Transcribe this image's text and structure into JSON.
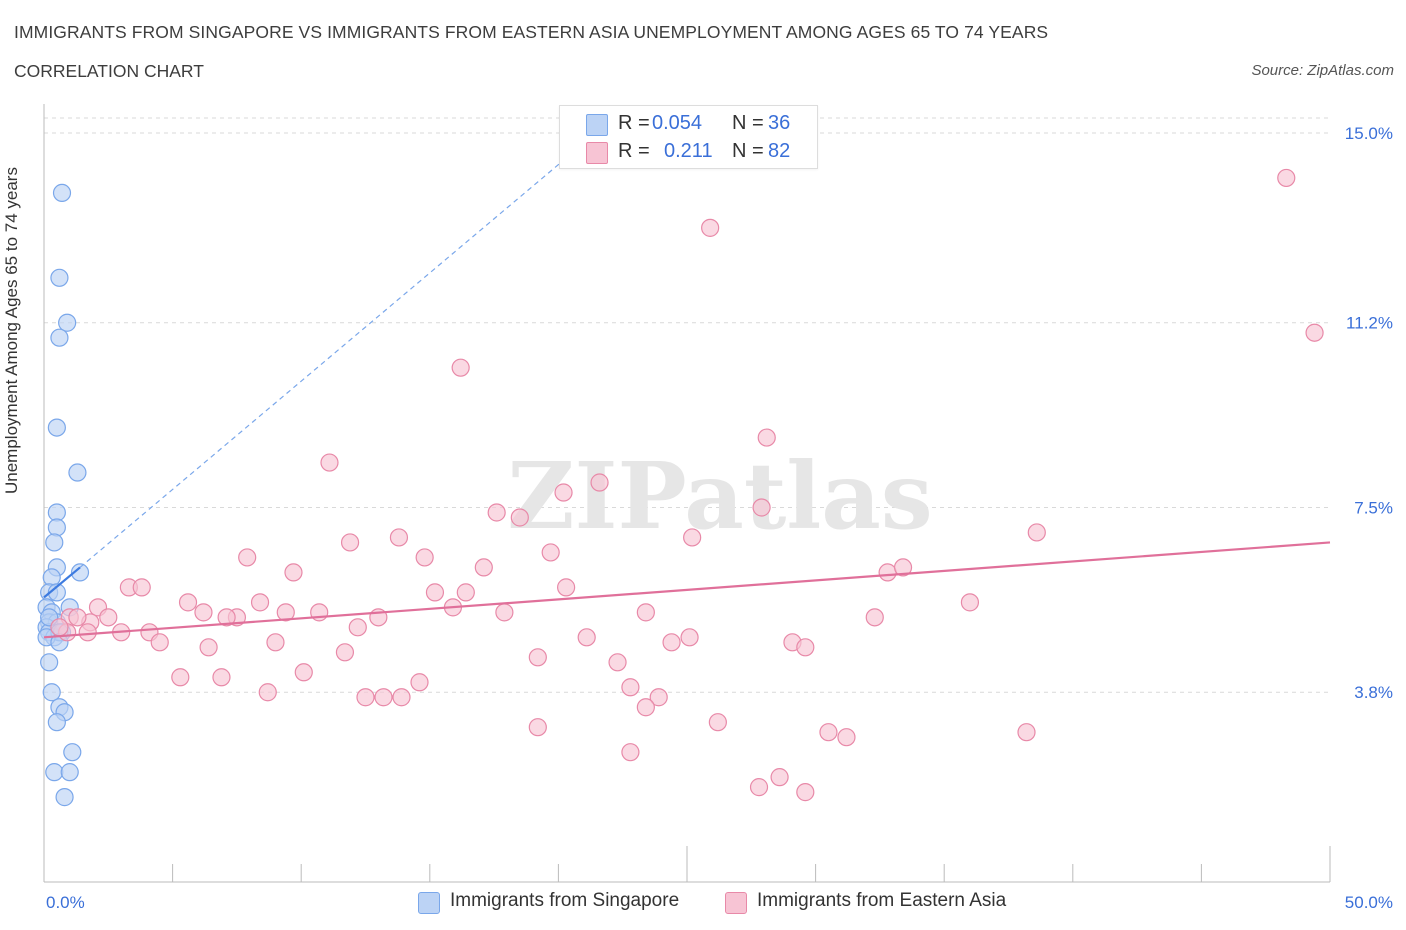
{
  "header": {
    "title": "IMMIGRANTS FROM SINGAPORE VS IMMIGRANTS FROM EASTERN ASIA UNEMPLOYMENT AMONG AGES 65 TO 74 YEARS",
    "subtitle": "CORRELATION CHART",
    "source": "Source: ZipAtlas.com"
  },
  "watermark": "ZIPatlas",
  "legend": {
    "singapore": {
      "r_label": "R =",
      "r_value": "0.054",
      "n_label": "N =",
      "n_value": "36"
    },
    "eastern_asia": {
      "r_label": "R =",
      "r_value": "0.211",
      "n_label": "N =",
      "n_value": "82"
    }
  },
  "chart_data": {
    "type": "scatter",
    "title": "IMMIGRANTS FROM SINGAPORE VS IMMIGRANTS FROM EASTERN ASIA UNEMPLOYMENT AMONG AGES 65 TO 74 YEARS",
    "subtitle": "CORRELATION CHART",
    "xlabel": "",
    "ylabel": "Unemployment Among Ages 65 to 74 years",
    "xlim": [
      0,
      50
    ],
    "ylim": [
      0,
      15.3
    ],
    "x_tick_labels": {
      "min": "0.0%",
      "max": "50.0%"
    },
    "y_ticks": [
      {
        "value": 3.8,
        "label": "3.8%"
      },
      {
        "value": 7.5,
        "label": "7.5%"
      },
      {
        "value": 11.2,
        "label": "11.2%"
      },
      {
        "value": 15.0,
        "label": "15.0%"
      }
    ],
    "grid": true,
    "legend_position": "bottom-center",
    "series": [
      {
        "name": "Immigrants from Singapore",
        "color": "#7aa7ea",
        "fill": "#bcd3f5",
        "R": 0.054,
        "N": 36,
        "trend": {
          "x0": 0,
          "y0": 5.7,
          "x1": 1.4,
          "y1": 6.3
        },
        "trend_extension": {
          "x0": 1.4,
          "y0": 6.3,
          "x1": 21.0,
          "y1": 14.8
        },
        "points": [
          [
            0.7,
            13.8
          ],
          [
            0.6,
            12.1
          ],
          [
            0.9,
            11.2
          ],
          [
            0.6,
            10.9
          ],
          [
            0.5,
            9.1
          ],
          [
            1.3,
            8.2
          ],
          [
            0.5,
            7.4
          ],
          [
            0.5,
            7.1
          ],
          [
            0.4,
            6.8
          ],
          [
            0.5,
            6.3
          ],
          [
            1.4,
            6.2
          ],
          [
            0.3,
            6.1
          ],
          [
            0.2,
            5.8
          ],
          [
            0.5,
            5.8
          ],
          [
            0.1,
            5.5
          ],
          [
            0.3,
            5.4
          ],
          [
            1.0,
            5.5
          ],
          [
            0.2,
            5.2
          ],
          [
            0.5,
            5.2
          ],
          [
            0.1,
            5.1
          ],
          [
            0.2,
            5.0
          ],
          [
            0.4,
            4.9
          ],
          [
            0.7,
            5.0
          ],
          [
            0.2,
            5.3
          ],
          [
            0.6,
            5.0
          ],
          [
            0.1,
            4.9
          ],
          [
            0.6,
            4.8
          ],
          [
            0.2,
            4.4
          ],
          [
            0.3,
            3.8
          ],
          [
            0.6,
            3.5
          ],
          [
            0.8,
            3.4
          ],
          [
            0.5,
            3.2
          ],
          [
            1.1,
            2.6
          ],
          [
            0.4,
            2.2
          ],
          [
            1.0,
            2.2
          ],
          [
            0.8,
            1.7
          ]
        ]
      },
      {
        "name": "Immigrants from Eastern Asia",
        "color": "#e889a8",
        "fill": "#f7c4d4",
        "R": 0.211,
        "N": 82,
        "trend": {
          "x0": 0,
          "y0": 4.9,
          "x1": 50,
          "y1": 6.8
        },
        "points": [
          [
            48.3,
            14.1
          ],
          [
            49.4,
            11.0
          ],
          [
            25.9,
            13.1
          ],
          [
            16.2,
            10.3
          ],
          [
            28.1,
            8.9
          ],
          [
            11.1,
            8.4
          ],
          [
            20.2,
            7.8
          ],
          [
            21.6,
            8.0
          ],
          [
            17.6,
            7.4
          ],
          [
            18.5,
            7.3
          ],
          [
            27.9,
            7.5
          ],
          [
            25.2,
            6.9
          ],
          [
            38.6,
            7.0
          ],
          [
            13.8,
            6.9
          ],
          [
            11.9,
            6.8
          ],
          [
            7.9,
            6.5
          ],
          [
            14.8,
            6.5
          ],
          [
            19.7,
            6.6
          ],
          [
            17.1,
            6.3
          ],
          [
            9.7,
            6.2
          ],
          [
            32.8,
            6.2
          ],
          [
            33.4,
            6.3
          ],
          [
            3.3,
            5.9
          ],
          [
            3.8,
            5.9
          ],
          [
            15.2,
            5.8
          ],
          [
            20.3,
            5.9
          ],
          [
            16.4,
            5.8
          ],
          [
            5.6,
            5.6
          ],
          [
            8.4,
            5.6
          ],
          [
            36.0,
            5.6
          ],
          [
            15.9,
            5.5
          ],
          [
            2.1,
            5.5
          ],
          [
            6.2,
            5.4
          ],
          [
            9.4,
            5.4
          ],
          [
            10.7,
            5.4
          ],
          [
            17.9,
            5.4
          ],
          [
            23.4,
            5.4
          ],
          [
            7.5,
            5.3
          ],
          [
            7.1,
            5.3
          ],
          [
            13.0,
            5.3
          ],
          [
            32.3,
            5.3
          ],
          [
            1.0,
            5.3
          ],
          [
            2.5,
            5.3
          ],
          [
            1.8,
            5.2
          ],
          [
            12.2,
            5.1
          ],
          [
            0.9,
            5.0
          ],
          [
            1.7,
            5.0
          ],
          [
            4.1,
            5.0
          ],
          [
            3.0,
            5.0
          ],
          [
            21.1,
            4.9
          ],
          [
            25.1,
            4.9
          ],
          [
            4.5,
            4.8
          ],
          [
            9.0,
            4.8
          ],
          [
            24.4,
            4.8
          ],
          [
            29.1,
            4.8
          ],
          [
            29.6,
            4.7
          ],
          [
            11.7,
            4.6
          ],
          [
            6.4,
            4.7
          ],
          [
            19.2,
            4.5
          ],
          [
            22.3,
            4.4
          ],
          [
            10.1,
            4.2
          ],
          [
            5.3,
            4.1
          ],
          [
            6.9,
            4.1
          ],
          [
            14.6,
            4.0
          ],
          [
            22.8,
            3.9
          ],
          [
            8.7,
            3.8
          ],
          [
            13.2,
            3.7
          ],
          [
            12.5,
            3.7
          ],
          [
            13.9,
            3.7
          ],
          [
            23.9,
            3.7
          ],
          [
            23.4,
            3.5
          ],
          [
            26.2,
            3.2
          ],
          [
            19.2,
            3.1
          ],
          [
            38.2,
            3.0
          ],
          [
            30.5,
            3.0
          ],
          [
            31.2,
            2.9
          ],
          [
            22.8,
            2.6
          ],
          [
            28.6,
            2.1
          ],
          [
            27.8,
            1.9
          ],
          [
            29.6,
            1.8
          ],
          [
            1.3,
            5.3
          ],
          [
            0.6,
            5.1
          ]
        ]
      }
    ]
  }
}
